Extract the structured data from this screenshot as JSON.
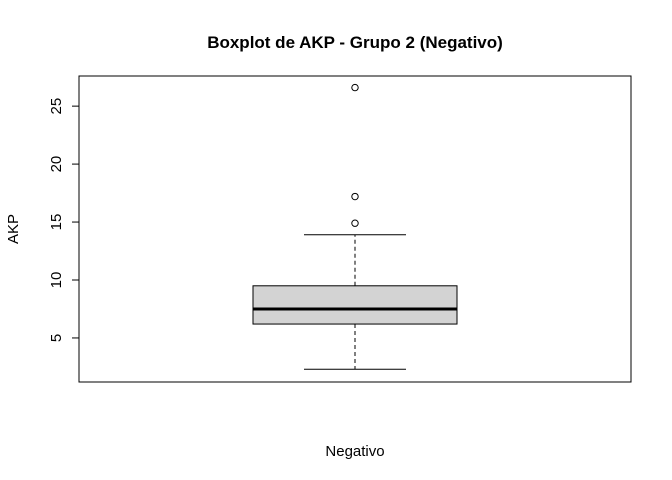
{
  "chart_data": {
    "type": "boxplot",
    "title": "Boxplot de AKP - Grupo 2 (Negativo)",
    "xlabel": "Negativo",
    "ylabel": "AKP",
    "ylim": [
      1.2,
      27.6
    ],
    "yticks": [
      5,
      10,
      15,
      20,
      25
    ],
    "grid": false,
    "legend": "none",
    "box": {
      "whisker_low": 2.3,
      "q1": 6.2,
      "median": 7.5,
      "q3": 9.5,
      "whisker_high": 13.9,
      "outliers": [
        14.9,
        17.2,
        26.6
      ]
    },
    "colors": {
      "box_fill": "#d3d3d3",
      "stroke": "#000000"
    }
  }
}
